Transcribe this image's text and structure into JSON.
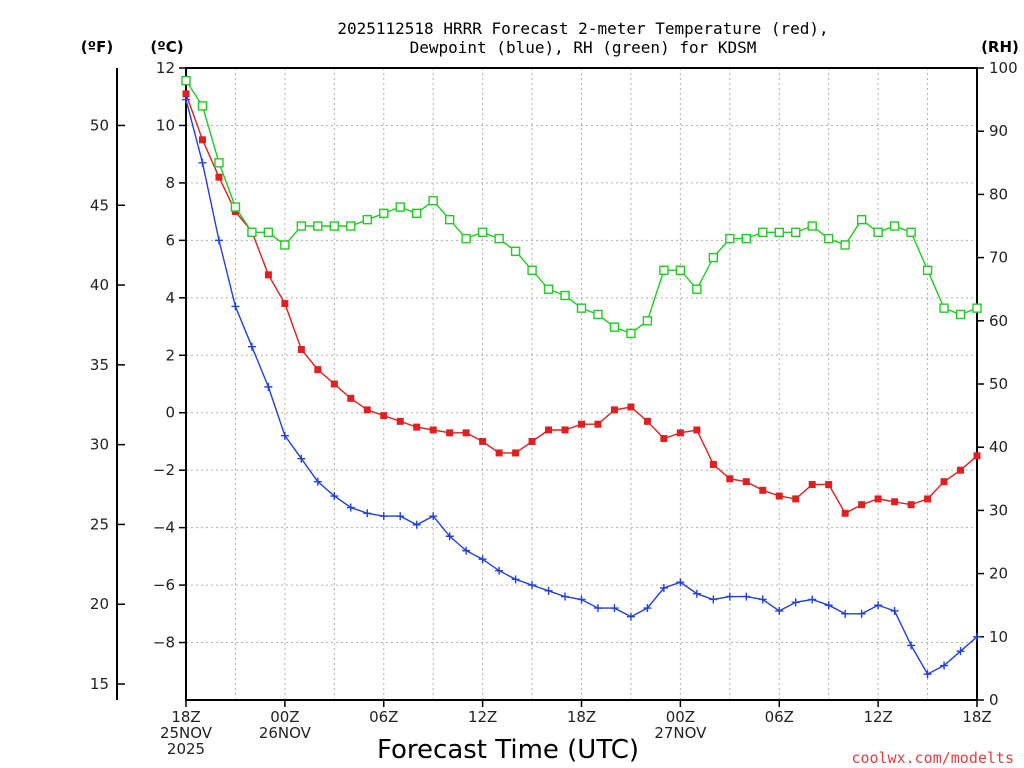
{
  "chart_data": {
    "type": "line",
    "title_lines": [
      "2025112518 HRRR Forecast 2-meter Temperature (red),",
      "Dewpoint (blue), RH (green) for KDSM"
    ],
    "units": {
      "left_f": "(ºF)",
      "left_c": "(ºC)",
      "right_rh": "(RH)"
    },
    "xlabel": "Forecast Time (UTC)",
    "credit": "coolwx.com/modelts",
    "x_range_hours": [
      0,
      48
    ],
    "x_ticks": [
      {
        "hour": 0,
        "lines": [
          "18Z",
          "25NOV",
          "2025"
        ]
      },
      {
        "hour": 6,
        "lines": [
          "00Z",
          "26NOV"
        ]
      },
      {
        "hour": 12,
        "lines": [
          "06Z"
        ]
      },
      {
        "hour": 18,
        "lines": [
          "12Z"
        ]
      },
      {
        "hour": 24,
        "lines": [
          "18Z"
        ]
      },
      {
        "hour": 30,
        "lines": [
          "00Z",
          "27NOV"
        ]
      },
      {
        "hour": 36,
        "lines": [
          "06Z"
        ]
      },
      {
        "hour": 42,
        "lines": [
          "12Z"
        ]
      },
      {
        "hour": 48,
        "lines": [
          "18Z"
        ]
      }
    ],
    "celsius_axis": {
      "range": [
        -10,
        12
      ],
      "ticks": [
        12,
        10,
        8,
        6,
        4,
        2,
        0,
        -2,
        -4,
        -6,
        -8
      ],
      "tick_labels": [
        "12",
        "10",
        "8",
        "6",
        "4",
        "2",
        "0",
        "−2",
        "−4",
        "−6",
        "−8"
      ]
    },
    "fahrenheit_axis": {
      "ticks": [
        50,
        45,
        40,
        35,
        30,
        25,
        20,
        15
      ],
      "tick_labels": [
        "50",
        "45",
        "40",
        "35",
        "30",
        "25",
        "20",
        "15"
      ]
    },
    "rh_axis": {
      "range": [
        0,
        100
      ],
      "ticks": [
        100,
        90,
        80,
        70,
        60,
        50,
        40,
        30,
        20,
        10,
        0
      ],
      "tick_labels": [
        "100",
        "90",
        "80",
        "70",
        "60",
        "50",
        "40",
        "30",
        "20",
        "10",
        "0"
      ]
    },
    "hours": [
      0,
      1,
      2,
      3,
      4,
      5,
      6,
      7,
      8,
      9,
      10,
      11,
      12,
      13,
      14,
      15,
      16,
      17,
      18,
      19,
      20,
      21,
      22,
      23,
      24,
      25,
      26,
      27,
      28,
      29,
      30,
      31,
      32,
      33,
      34,
      35,
      36,
      37,
      38,
      39,
      40,
      41,
      42,
      43,
      44,
      45,
      46,
      47,
      48
    ],
    "series": [
      {
        "name": "2-meter Temperature",
        "color": "#e02020",
        "marker": "filled-square",
        "axis": "celsius",
        "values": [
          11.1,
          9.5,
          8.2,
          7.0,
          6.3,
          4.8,
          3.8,
          2.2,
          1.5,
          1.0,
          0.5,
          0.1,
          -0.1,
          -0.3,
          -0.5,
          -0.6,
          -0.7,
          -0.7,
          -1.0,
          -1.4,
          -1.4,
          -1.0,
          -0.6,
          -0.6,
          -0.4,
          -0.4,
          0.1,
          0.2,
          -0.3,
          -0.9,
          -0.7,
          -0.6,
          -1.8,
          -2.3,
          -2.4,
          -2.7,
          -2.9,
          -3.0,
          -2.5,
          -2.5,
          -3.5,
          -3.2,
          -3.0,
          -3.1,
          -3.2,
          -3.0,
          -2.4,
          -2.0,
          -1.5
        ]
      },
      {
        "name": "Dewpoint",
        "color": "#2040e0",
        "marker": "plus",
        "axis": "celsius",
        "values": [
          10.9,
          8.7,
          6.0,
          3.7,
          2.3,
          0.9,
          -0.8,
          -1.6,
          -2.4,
          -2.9,
          -3.3,
          -3.5,
          -3.6,
          -3.6,
          -3.9,
          -3.6,
          -4.3,
          -4.8,
          -5.1,
          -5.5,
          -5.8,
          -6.0,
          -6.2,
          -6.4,
          -6.5,
          -6.8,
          -6.8,
          -7.1,
          -6.8,
          -6.1,
          -5.9,
          -6.3,
          -6.5,
          -6.4,
          -6.4,
          -6.5,
          -6.9,
          -6.6,
          -6.5,
          -6.7,
          -7.0,
          -7.0,
          -6.7,
          -6.9,
          -8.1,
          -9.1,
          -8.8,
          -8.3,
          -7.8
        ]
      },
      {
        "name": "RH",
        "color": "#20cc20",
        "marker": "open-square",
        "axis": "rh",
        "values": [
          98,
          94,
          85,
          78,
          74,
          74,
          72,
          75,
          75,
          75,
          75,
          76,
          77,
          78,
          77,
          79,
          76,
          73,
          74,
          73,
          71,
          68,
          65,
          64,
          62,
          61,
          59,
          58,
          60,
          68,
          68,
          65,
          70,
          73,
          73,
          74,
          74,
          74,
          75,
          73,
          72,
          76,
          74,
          75,
          74,
          68,
          62,
          61,
          62
        ]
      }
    ]
  }
}
